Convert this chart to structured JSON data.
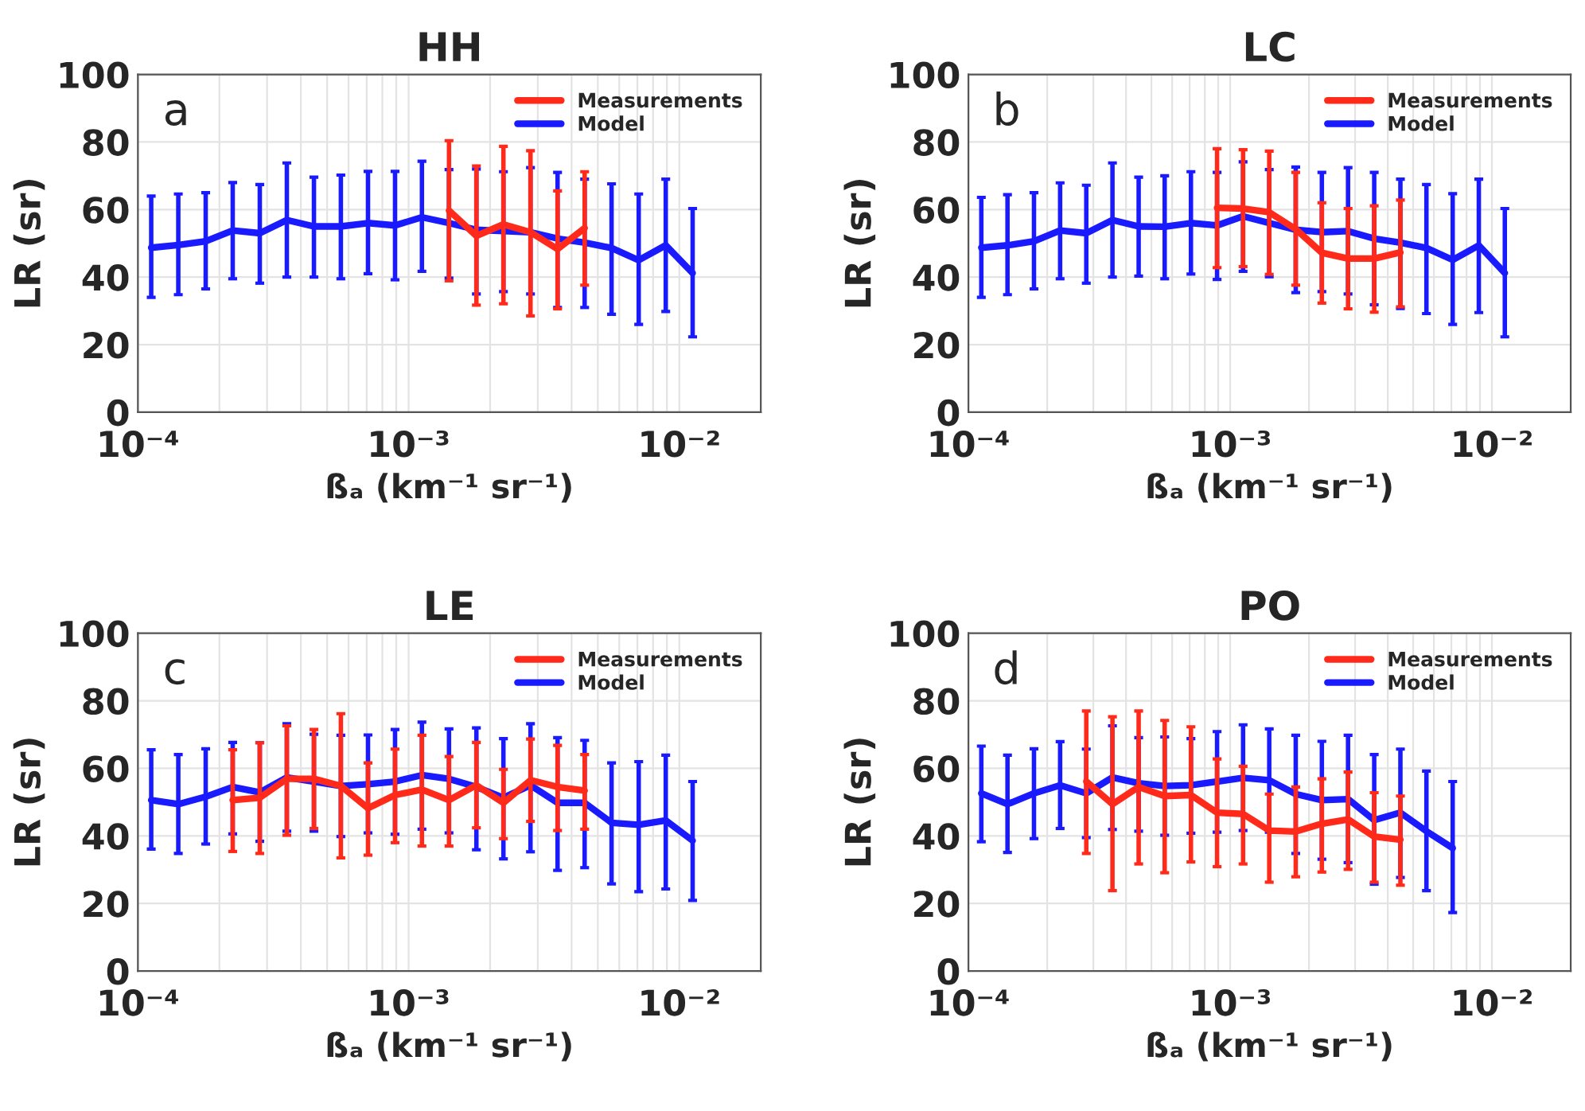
{
  "chart_data": [
    {
      "type": "line",
      "title": "HH",
      "xlabel": "ßₐ (km⁻¹ sr⁻¹)",
      "ylabel": "LR (sr)",
      "annotations": [
        "a"
      ],
      "log": "x",
      "grid": true,
      "legend": "top right",
      "xlim": [
        0.0001,
        0.02
      ],
      "xticks": [
        {
          "value": 0.0001,
          "label": "10⁻⁴"
        },
        {
          "value": 0.001,
          "label": "10⁻³"
        },
        {
          "value": 0.01,
          "label": "10⁻²"
        }
      ],
      "ylim": [
        0,
        100
      ],
      "yticks": [
        0,
        20,
        40,
        60,
        80,
        100
      ],
      "series": [
        {
          "name": "Measurements",
          "color": "#ff2a1a",
          "x": [
            0.00141,
            0.00178,
            0.00224,
            0.00282,
            0.00355,
            0.00447
          ],
          "values": [
            59.7,
            52.2,
            55.6,
            53.3,
            48.3,
            54.5
          ],
          "errors": [
            [
              38.9,
              80.4
            ],
            [
              31.7,
              72.9
            ],
            [
              32.1,
              78.7
            ],
            [
              28.5,
              77.4
            ],
            [
              30.6,
              65.5
            ],
            [
              37.6,
              71.2
            ]
          ]
        },
        {
          "name": "Model",
          "color": "#1a1aff",
          "x": [
            0.000112,
            0.000141,
            0.000178,
            0.000224,
            0.000282,
            0.000355,
            0.000447,
            0.000562,
            0.000708,
            0.000891,
            0.00112,
            0.00141,
            0.00178,
            0.00224,
            0.00282,
            0.00355,
            0.00447,
            0.00562,
            0.00708,
            0.00891,
            0.0112
          ],
          "values": [
            48.7,
            49.5,
            50.6,
            53.8,
            53,
            56.9,
            55,
            55,
            56,
            55.3,
            57.7,
            56,
            54,
            53.6,
            53.3,
            51.4,
            50.2,
            48.6,
            45,
            49.4,
            41.2
          ],
          "errors": [
            [
              34,
              64
            ],
            [
              34.8,
              64.6
            ],
            [
              36.5,
              65
            ],
            [
              39.5,
              68
            ],
            [
              38.2,
              67.4
            ],
            [
              40,
              73.8
            ],
            [
              40,
              69.6
            ],
            [
              39.5,
              70.2
            ],
            [
              41,
              71.3
            ],
            [
              39.2,
              71.3
            ],
            [
              41.7,
              74.3
            ],
            [
              39.7,
              71.8
            ],
            [
              35,
              72
            ],
            [
              35.7,
              71.2
            ],
            [
              35,
              72.4
            ],
            [
              31,
              71
            ],
            [
              31,
              69
            ],
            [
              29,
              67.6
            ],
            [
              26,
              64.6
            ],
            [
              29.8,
              69
            ],
            [
              22.3,
              60.3
            ]
          ]
        }
      ]
    },
    {
      "type": "line",
      "title": "LC",
      "xlabel": "ßₐ (km⁻¹ sr⁻¹)",
      "ylabel": "LR (sr)",
      "annotations": [
        "b"
      ],
      "log": "x",
      "grid": true,
      "legend": "top right",
      "xlim": [
        0.0001,
        0.02
      ],
      "xticks": [
        {
          "value": 0.0001,
          "label": "10⁻⁴"
        },
        {
          "value": 0.001,
          "label": "10⁻³"
        },
        {
          "value": 0.01,
          "label": "10⁻²"
        }
      ],
      "ylim": [
        0,
        100
      ],
      "yticks": [
        0,
        20,
        40,
        60,
        80,
        100
      ],
      "series": [
        {
          "name": "Measurements",
          "color": "#ff2a1a",
          "x": [
            0.000891,
            0.00112,
            0.00141,
            0.00178,
            0.00224,
            0.00282,
            0.00355,
            0.00447
          ],
          "values": [
            60.5,
            60.3,
            59.2,
            54.2,
            47.2,
            45.5,
            45.5,
            47.3
          ],
          "errors": [
            [
              42.8,
              78
            ],
            [
              43.1,
              77.7
            ],
            [
              40.8,
              77.3
            ],
            [
              37.6,
              71
            ],
            [
              32.3,
              62
            ],
            [
              30.6,
              60.3
            ],
            [
              29.6,
              61.1
            ],
            [
              31.2,
              62.8
            ]
          ]
        },
        {
          "name": "Model",
          "color": "#1a1aff",
          "x": [
            0.000112,
            0.000141,
            0.000178,
            0.000224,
            0.000282,
            0.000355,
            0.000447,
            0.000562,
            0.000708,
            0.000891,
            0.00112,
            0.00141,
            0.00178,
            0.00224,
            0.00282,
            0.00355,
            0.00447,
            0.00562,
            0.00708,
            0.00891,
            0.0112
          ],
          "values": [
            48.7,
            49.4,
            50.6,
            53.8,
            53,
            56.9,
            55,
            54.9,
            56,
            55.3,
            58,
            56,
            54,
            53.3,
            53.6,
            51.4,
            50.2,
            48.6,
            45.1,
            49.4,
            41.2
          ],
          "errors": [
            [
              34,
              63.6
            ],
            [
              34.8,
              64.4
            ],
            [
              36.5,
              65
            ],
            [
              39.5,
              67.9
            ],
            [
              38.2,
              67.2
            ],
            [
              40,
              73.8
            ],
            [
              40.3,
              69.6
            ],
            [
              39.5,
              70
            ],
            [
              40.9,
              71.2
            ],
            [
              39.3,
              71
            ],
            [
              41.7,
              74.1
            ],
            [
              40.1,
              71.8
            ],
            [
              35.4,
              72.6
            ],
            [
              35.7,
              71
            ],
            [
              35,
              72.4
            ],
            [
              31.8,
              71
            ],
            [
              30.7,
              69
            ],
            [
              29.2,
              67.4
            ],
            [
              26,
              64.7
            ],
            [
              29.5,
              69
            ],
            [
              22.3,
              60.3
            ]
          ]
        }
      ]
    },
    {
      "type": "line",
      "title": "LE",
      "xlabel": "ßₐ (km⁻¹ sr⁻¹)",
      "ylabel": "LR (sr)",
      "annotations": [
        "c"
      ],
      "log": "x",
      "grid": true,
      "legend": "top right",
      "xlim": [
        0.0001,
        0.02
      ],
      "xticks": [
        {
          "value": 0.0001,
          "label": "10⁻⁴"
        },
        {
          "value": 0.001,
          "label": "10⁻³"
        },
        {
          "value": 0.01,
          "label": "10⁻²"
        }
      ],
      "ylim": [
        0,
        100
      ],
      "yticks": [
        0,
        20,
        40,
        60,
        80,
        100
      ],
      "series": [
        {
          "name": "Measurements",
          "color": "#ff2a1a",
          "x": [
            0.000224,
            0.000282,
            0.000355,
            0.000447,
            0.000562,
            0.000708,
            0.000891,
            0.00112,
            0.00141,
            0.00178,
            0.00224,
            0.00282,
            0.00355,
            0.00447
          ],
          "values": [
            50.6,
            51.3,
            56.9,
            56.9,
            54.8,
            48.2,
            52.1,
            53.7,
            50.6,
            55,
            49.8,
            56.5,
            54.5,
            53.4
          ],
          "errors": [
            [
              35.4,
              65.5
            ],
            [
              34.8,
              67.6
            ],
            [
              40.2,
              72.6
            ],
            [
              42.2,
              71.5
            ],
            [
              33.5,
              76.2
            ],
            [
              34.3,
              61.6
            ],
            [
              38,
              65.7
            ],
            [
              37,
              69.8
            ],
            [
              37,
              63.5
            ],
            [
              42.4,
              67.7
            ],
            [
              39.2,
              59.7
            ],
            [
              44.3,
              68.7
            ],
            [
              41.6,
              66.8
            ],
            [
              42,
              64.1
            ]
          ]
        },
        {
          "name": "Model",
          "color": "#1a1aff",
          "x": [
            0.000112,
            0.000141,
            0.000178,
            0.000224,
            0.000282,
            0.000355,
            0.000447,
            0.000562,
            0.000708,
            0.000891,
            0.00112,
            0.00141,
            0.00178,
            0.00224,
            0.00282,
            0.00355,
            0.00447,
            0.00562,
            0.00708,
            0.00891,
            0.0112
          ],
          "values": [
            50.6,
            49.4,
            51.6,
            54.5,
            52.9,
            57.3,
            56.1,
            54.8,
            55.3,
            56.1,
            58,
            56.9,
            54.5,
            51.3,
            55,
            49.8,
            49.8,
            43.9,
            43.3,
            44.6,
            38.6
          ],
          "errors": [
            [
              36.1,
              65.5
            ],
            [
              34.8,
              64.1
            ],
            [
              37.6,
              65.8
            ],
            [
              40.6,
              67.7
            ],
            [
              38.4,
              67.6
            ],
            [
              41.4,
              73.2
            ],
            [
              41.4,
              70.1
            ],
            [
              39.8,
              69.8
            ],
            [
              40.9,
              69.9
            ],
            [
              40.5,
              71.5
            ],
            [
              42,
              73.7
            ],
            [
              40.9,
              71.7
            ],
            [
              35.9,
              72
            ],
            [
              33.2,
              68.8
            ],
            [
              35.3,
              73.2
            ],
            [
              29.8,
              69.1
            ],
            [
              30.6,
              68.3
            ],
            [
              25.8,
              61.6
            ],
            [
              23.5,
              62
            ],
            [
              24.3,
              63.9
            ],
            [
              20.9,
              56.1
            ]
          ]
        }
      ]
    },
    {
      "type": "line",
      "title": "PO",
      "xlabel": "ßₐ (km⁻¹ sr⁻¹)",
      "ylabel": "LR (sr)",
      "annotations": [
        "d"
      ],
      "log": "x",
      "grid": true,
      "legend": "top right",
      "xlim": [
        0.0001,
        0.02
      ],
      "xticks": [
        {
          "value": 0.0001,
          "label": "10⁻⁴"
        },
        {
          "value": 0.001,
          "label": "10⁻³"
        },
        {
          "value": 0.01,
          "label": "10⁻²"
        }
      ],
      "ylim": [
        0,
        100
      ],
      "yticks": [
        0,
        20,
        40,
        60,
        80,
        100
      ],
      "series": [
        {
          "name": "Measurements",
          "color": "#ff2a1a",
          "x": [
            0.000282,
            0.000355,
            0.000447,
            0.000562,
            0.000708,
            0.000891,
            0.00112,
            0.00141,
            0.00178,
            0.00224,
            0.00282,
            0.00355,
            0.00447
          ],
          "values": [
            56.1,
            49.4,
            54.5,
            51.8,
            52.1,
            46.9,
            46.5,
            41.6,
            41.3,
            43.6,
            44.9,
            39.8,
            38.9
          ],
          "errors": [
            [
              34.8,
              77
            ],
            [
              23.8,
              75.3
            ],
            [
              31.7,
              77
            ],
            [
              29.1,
              74.2
            ],
            [
              32.3,
              72.3
            ],
            [
              30.9,
              62.8
            ],
            [
              31.7,
              60.6
            ],
            [
              26.3,
              52.4
            ],
            [
              27.9,
              54.5
            ],
            [
              29.3,
              56.9
            ],
            [
              30.1,
              58.9
            ],
            [
              26.3,
              52.8
            ],
            [
              25.4,
              51.8
            ]
          ]
        },
        {
          "name": "Model",
          "color": "#1a1aff",
          "x": [
            0.000112,
            0.000141,
            0.000178,
            0.000224,
            0.000282,
            0.000355,
            0.000447,
            0.000562,
            0.000708,
            0.000891,
            0.00112,
            0.00141,
            0.00178,
            0.00224,
            0.00282,
            0.00355,
            0.00447,
            0.00562,
            0.00708
          ],
          "values": [
            52.6,
            49.4,
            52.6,
            55,
            52.6,
            57.3,
            55.6,
            54.8,
            55,
            56.1,
            57.2,
            56.5,
            52.4,
            50.6,
            50.9,
            44.7,
            46.9,
            41.4,
            36.4
          ],
          "errors": [
            [
              38.3,
              66.6
            ],
            [
              35.1,
              63.9
            ],
            [
              39.2,
              65.8
            ],
            [
              42.2,
              67.9
            ],
            [
              39.5,
              65.7
            ],
            [
              41.9,
              72.6
            ],
            [
              41.4,
              69.1
            ],
            [
              40.2,
              69.3
            ],
            [
              40.8,
              68.8
            ],
            [
              41.1,
              70.9
            ],
            [
              41.6,
              72.9
            ],
            [
              41.1,
              71.7
            ],
            [
              34.8,
              69.8
            ],
            [
              33.1,
              68
            ],
            [
              32.1,
              69.8
            ],
            [
              25.7,
              64.1
            ],
            [
              27.7,
              65.7
            ],
            [
              23.8,
              59.2
            ],
            [
              17.3,
              56.1
            ]
          ]
        }
      ]
    }
  ]
}
